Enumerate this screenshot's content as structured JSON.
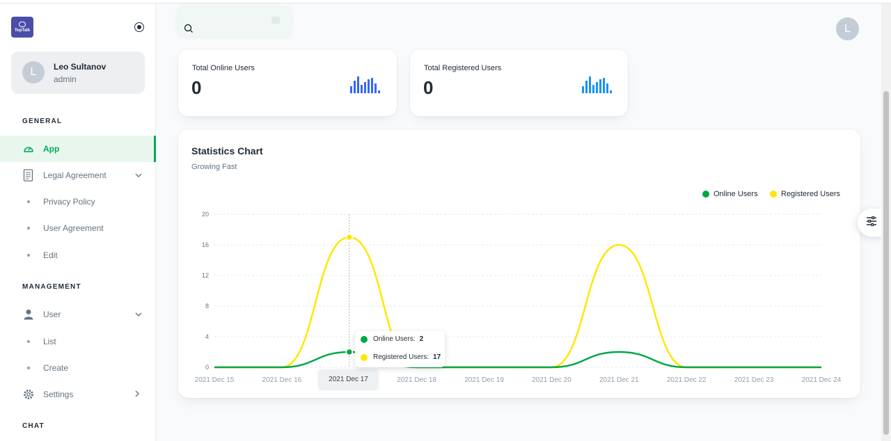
{
  "brand": {
    "logo_text": "TopTalk"
  },
  "account": {
    "initial": "L",
    "name": "Leo Sultanov",
    "role": "admin"
  },
  "sidebar": {
    "general_title": "GENERAL",
    "management_title": "MANAGEMENT",
    "chat_title": "CHAT",
    "items": [
      {
        "label": "App",
        "icon": "dashboard-icon",
        "active": true
      },
      {
        "label": "Legal Agreement",
        "icon": "document-icon"
      },
      {
        "label": "Privacy Policy"
      },
      {
        "label": "User Agreement"
      },
      {
        "label": "Edit"
      },
      {
        "label": "User",
        "icon": "user-icon"
      },
      {
        "label": "List"
      },
      {
        "label": "Create"
      },
      {
        "label": "Settings",
        "icon": "gear-icon"
      }
    ]
  },
  "topbar": {
    "user_initial": "L"
  },
  "stats": [
    {
      "title": "Total Online Users",
      "value": "0",
      "spark": [
        5,
        9,
        12,
        6,
        8,
        10,
        11,
        7,
        2
      ],
      "color": "#3366ff"
    },
    {
      "title": "Total Registered Users",
      "value": "0",
      "spark": [
        5,
        9,
        12,
        6,
        8,
        10,
        11,
        7,
        2
      ],
      "color": "#1890ff"
    }
  ],
  "chart": {
    "title": "Statistics Chart",
    "subtitle": "Growing Fast",
    "tooltip": {
      "online_label": "Online Users:",
      "online_value": "2",
      "registered_label": "Registered Users:",
      "registered_value": "17",
      "x_label": "2021 Dec 17"
    }
  },
  "chart_data": {
    "type": "line",
    "x": [
      "2021 Dec 15",
      "2021 Dec 16",
      "2021 Dec 17",
      "2021 Dec 18",
      "2021 Dec 19",
      "2021 Dec 20",
      "2021 Dec 21",
      "2021 Dec 22",
      "2021 Dec 23",
      "2021 Dec 24"
    ],
    "series": [
      {
        "name": "Online Users",
        "color": "#00a745",
        "values": [
          0,
          0,
          2,
          0,
          0,
          0,
          2,
          0,
          0,
          0
        ]
      },
      {
        "name": "Registered Users",
        "color": "#ffe700",
        "values": [
          0,
          0,
          17,
          0,
          0,
          0,
          16,
          0,
          0,
          0
        ]
      }
    ],
    "yticks": [
      "0",
      "4",
      "8",
      "12",
      "16",
      "20"
    ],
    "ylim": [
      0,
      20
    ],
    "legend_position": "top-right",
    "grid": true,
    "title": "Statistics Chart",
    "subtitle": "Growing Fast"
  }
}
